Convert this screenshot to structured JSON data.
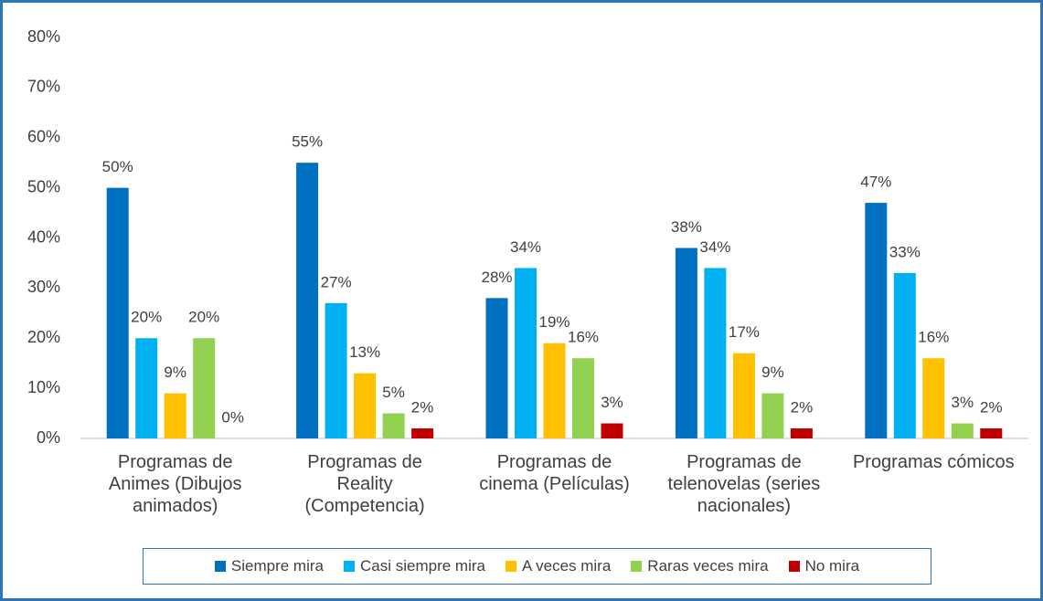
{
  "chart_data": {
    "type": "bar",
    "categories": [
      "Programas de Animes (Dibujos animados)",
      "Programas de Reality (Competencia)",
      "Programas de cinema (Películas)",
      "Programas de telenovelas (series nacionales)",
      "Programas cómicos"
    ],
    "series": [
      {
        "name": "Siempre mira",
        "color": "#0070c0",
        "values": [
          50,
          55,
          28,
          38,
          47
        ],
        "value_labels": [
          "50%",
          "55%",
          "28%",
          "38%",
          "47%"
        ]
      },
      {
        "name": "Casi siempre mira",
        "color": "#00b0f0",
        "values": [
          20,
          27,
          34,
          34,
          33
        ],
        "value_labels": [
          "20%",
          "27%",
          "34%",
          "34%",
          "33%"
        ]
      },
      {
        "name": "A veces mira",
        "color": "#ffc000",
        "values": [
          9,
          13,
          19,
          17,
          16
        ],
        "value_labels": [
          "9%",
          "13%",
          "19%",
          "17%",
          "16%"
        ]
      },
      {
        "name": "Raras veces mira",
        "color": "#92d050",
        "values": [
          20,
          5,
          16,
          9,
          3
        ],
        "value_labels": [
          "20%",
          "5%",
          "16%",
          "9%",
          "3%"
        ]
      },
      {
        "name": "No mira",
        "color": "#c00000",
        "values": [
          0,
          2,
          3,
          2,
          2
        ],
        "value_labels": [
          "0%",
          "2%",
          "3%",
          "2%",
          "2%"
        ]
      }
    ],
    "ylim": [
      0,
      80
    ],
    "yticks": [
      {
        "value": 0,
        "label": "0%"
      },
      {
        "value": 10,
        "label": "10%"
      },
      {
        "value": 20,
        "label": "20%"
      },
      {
        "value": 30,
        "label": "30%"
      },
      {
        "value": 40,
        "label": "40%"
      },
      {
        "value": 50,
        "label": "50%"
      },
      {
        "value": 60,
        "label": "60%"
      },
      {
        "value": 70,
        "label": "70%"
      },
      {
        "value": 80,
        "label": "80%"
      }
    ],
    "grid": false,
    "legend": "bottom"
  }
}
